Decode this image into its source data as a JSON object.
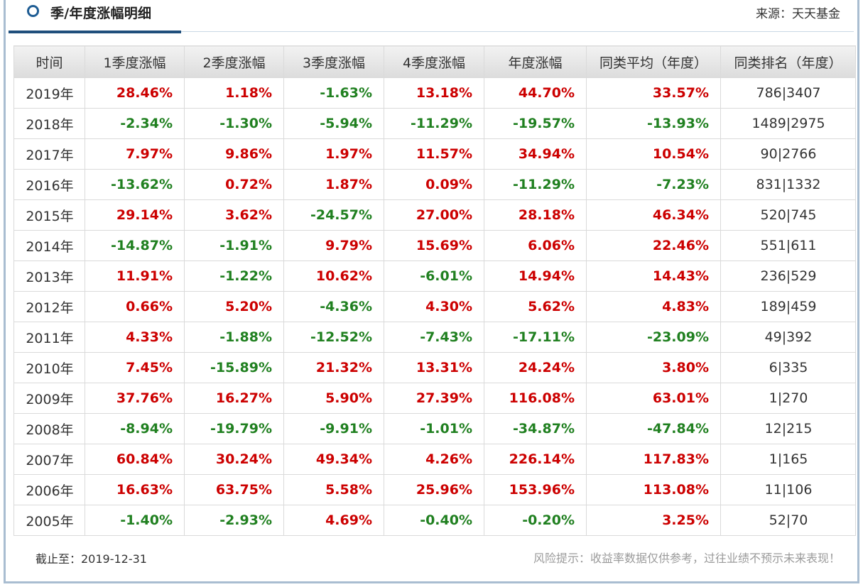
{
  "header": {
    "title": "季/年度涨幅明细",
    "source": "来源：天天基金"
  },
  "colors": {
    "positive": "#cc0000",
    "negative": "#208020",
    "accent": "#1f4f7c"
  },
  "table": {
    "columns": [
      "时间",
      "1季度涨幅",
      "2季度涨幅",
      "3季度涨幅",
      "4季度涨幅",
      "年度涨幅",
      "同类平均（年度）",
      "同类排名（年度）"
    ],
    "rows": [
      {
        "year": "2019年",
        "q1": "28.46%",
        "q2": "1.18%",
        "q3": "-1.63%",
        "q4": "13.18%",
        "annual": "44.70%",
        "avg": "33.57%",
        "rank": "786|3407"
      },
      {
        "year": "2018年",
        "q1": "-2.34%",
        "q2": "-1.30%",
        "q3": "-5.94%",
        "q4": "-11.29%",
        "annual": "-19.57%",
        "avg": "-13.93%",
        "rank": "1489|2975"
      },
      {
        "year": "2017年",
        "q1": "7.97%",
        "q2": "9.86%",
        "q3": "1.97%",
        "q4": "11.57%",
        "annual": "34.94%",
        "avg": "10.54%",
        "rank": "90|2766"
      },
      {
        "year": "2016年",
        "q1": "-13.62%",
        "q2": "0.72%",
        "q3": "1.87%",
        "q4": "0.09%",
        "annual": "-11.29%",
        "avg": "-7.23%",
        "rank": "831|1332"
      },
      {
        "year": "2015年",
        "q1": "29.14%",
        "q2": "3.62%",
        "q3": "-24.57%",
        "q4": "27.00%",
        "annual": "28.18%",
        "avg": "46.34%",
        "rank": "520|745"
      },
      {
        "year": "2014年",
        "q1": "-14.87%",
        "q2": "-1.91%",
        "q3": "9.79%",
        "q4": "15.69%",
        "annual": "6.06%",
        "avg": "22.46%",
        "rank": "551|611"
      },
      {
        "year": "2013年",
        "q1": "11.91%",
        "q2": "-1.22%",
        "q3": "10.62%",
        "q4": "-6.01%",
        "annual": "14.94%",
        "avg": "14.43%",
        "rank": "236|529"
      },
      {
        "year": "2012年",
        "q1": "0.66%",
        "q2": "5.20%",
        "q3": "-4.36%",
        "q4": "4.30%",
        "annual": "5.62%",
        "avg": "4.83%",
        "rank": "189|459"
      },
      {
        "year": "2011年",
        "q1": "4.33%",
        "q2": "-1.88%",
        "q3": "-12.52%",
        "q4": "-7.43%",
        "annual": "-17.11%",
        "avg": "-23.09%",
        "rank": "49|392"
      },
      {
        "year": "2010年",
        "q1": "7.45%",
        "q2": "-15.89%",
        "q3": "21.32%",
        "q4": "13.31%",
        "annual": "24.24%",
        "avg": "3.80%",
        "rank": "6|335"
      },
      {
        "year": "2009年",
        "q1": "37.76%",
        "q2": "16.27%",
        "q3": "5.90%",
        "q4": "27.39%",
        "annual": "116.08%",
        "avg": "63.01%",
        "rank": "1|270"
      },
      {
        "year": "2008年",
        "q1": "-8.94%",
        "q2": "-19.79%",
        "q3": "-9.91%",
        "q4": "-1.01%",
        "annual": "-34.87%",
        "avg": "-47.84%",
        "rank": "12|215"
      },
      {
        "year": "2007年",
        "q1": "60.84%",
        "q2": "30.24%",
        "q3": "49.34%",
        "q4": "4.26%",
        "annual": "226.14%",
        "avg": "117.83%",
        "rank": "1|165"
      },
      {
        "year": "2006年",
        "q1": "16.63%",
        "q2": "63.75%",
        "q3": "5.58%",
        "q4": "25.96%",
        "annual": "153.96%",
        "avg": "113.08%",
        "rank": "11|106"
      },
      {
        "year": "2005年",
        "q1": "-1.40%",
        "q2": "-2.93%",
        "q3": "4.69%",
        "q4": "-0.40%",
        "annual": "-0.20%",
        "avg": "3.25%",
        "rank": "52|70"
      }
    ]
  },
  "footer": {
    "cutoff": "截止至：2019-12-31",
    "risk_notice": "风险提示：收益率数据仅供参考，过往业绩不预示未来表现！"
  }
}
